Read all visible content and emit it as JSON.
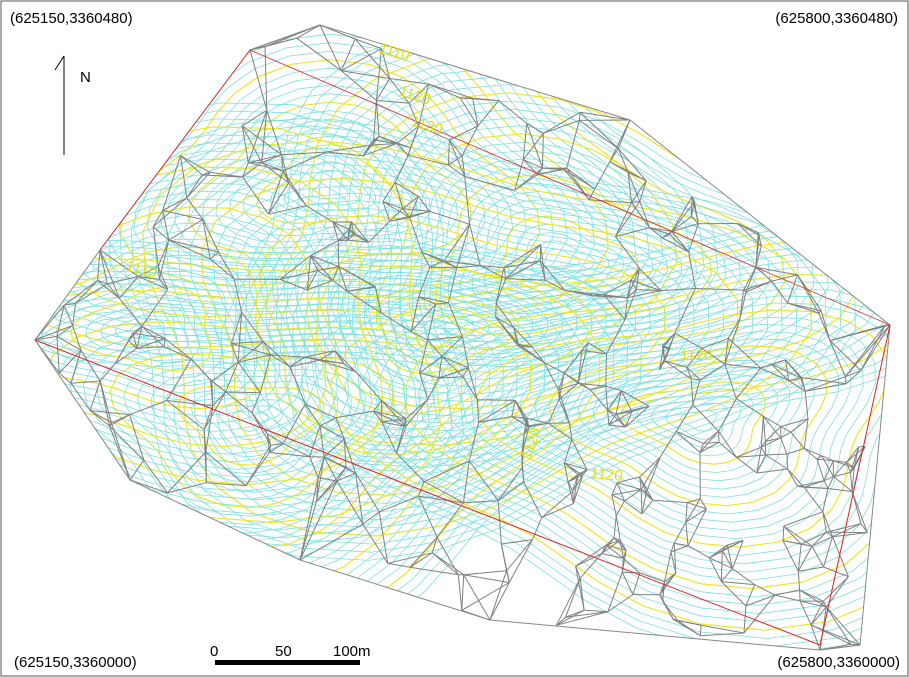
{
  "corners": {
    "top_left": "(625150,3360480)",
    "top_right": "(625800,3360480)",
    "bottom_left": "(625150,3360000)",
    "bottom_right": "(625800,3360000)"
  },
  "north": "N",
  "scale_bar": [
    "0",
    "50",
    "100m"
  ],
  "contour_labels": [
    "1110",
    "1120",
    "1130",
    "1110",
    "1120",
    "1120",
    "1120"
  ]
}
